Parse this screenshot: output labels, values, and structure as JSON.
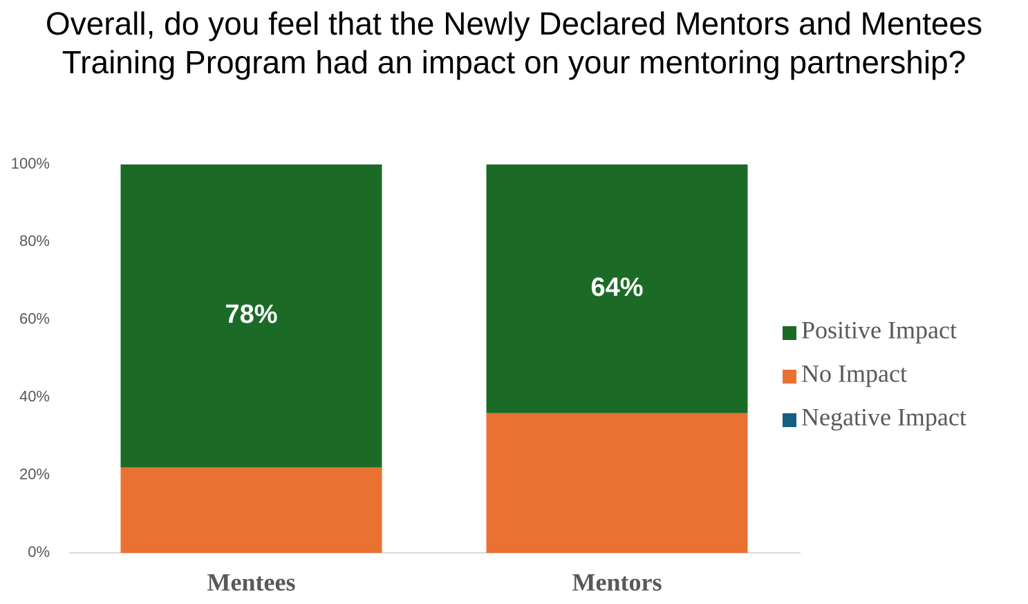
{
  "chart_data": {
    "type": "stacked_bar",
    "title": "Overall, do you feel that the Newly Declared Mentors and Mentees Training Program had an impact on your mentoring partnership?",
    "categories": [
      "Mentees",
      "Mentors"
    ],
    "series": [
      {
        "name": "Negative Impact",
        "color": "#156082",
        "values": [
          0,
          0
        ]
      },
      {
        "name": "No Impact",
        "color": "#e97132",
        "values": [
          22,
          36
        ]
      },
      {
        "name": "Positive Impact",
        "color": "#1b6b27",
        "values": [
          78,
          64
        ],
        "value_labels": [
          "78%",
          "64%"
        ]
      }
    ],
    "ylim": [
      0,
      100
    ],
    "yticks": [
      {
        "value": 0,
        "label": "0%"
      },
      {
        "value": 20,
        "label": "20%"
      },
      {
        "value": 40,
        "label": "40%"
      },
      {
        "value": 60,
        "label": "60%"
      },
      {
        "value": 80,
        "label": "80%"
      },
      {
        "value": 100,
        "label": "100%"
      }
    ],
    "grid": false,
    "legend": "right"
  }
}
